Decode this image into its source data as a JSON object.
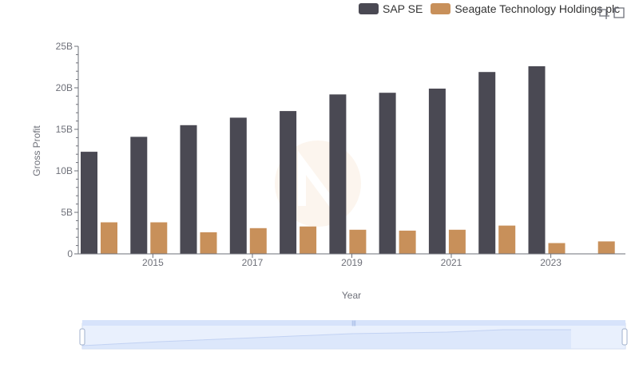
{
  "chart_data": {
    "type": "bar",
    "xlabel": "Year",
    "ylabel": "Gross Profit",
    "categories": [
      "2014",
      "2015",
      "2016",
      "2017",
      "2018",
      "2019",
      "2020",
      "2021",
      "2022",
      "2023",
      "2024"
    ],
    "x_tick_labels": [
      "2015",
      "2017",
      "2019",
      "2021",
      "2023"
    ],
    "y_tick_labels": [
      "0",
      "5B",
      "10B",
      "15B",
      "20B",
      "25B"
    ],
    "ylim": [
      0,
      25000000000
    ],
    "grid": false,
    "legend_position": "top-right",
    "series": [
      {
        "name": "SAP SE",
        "color": "#4a4953",
        "values": [
          12300000000,
          14100000000,
          15500000000,
          16400000000,
          17200000000,
          19200000000,
          19400000000,
          19900000000,
          21900000000,
          22600000000,
          null
        ]
      },
      {
        "name": "Seagate Technology Holdings plc",
        "color": "#c8905a",
        "values": [
          3800000000,
          3800000000,
          2600000000,
          3100000000,
          3300000000,
          2900000000,
          2800000000,
          2900000000,
          3400000000,
          1300000000,
          1500000000
        ]
      }
    ]
  },
  "toolbar": {
    "zoom_icon": "zoom-select-icon",
    "reset_icon": "zoom-reset-icon"
  }
}
